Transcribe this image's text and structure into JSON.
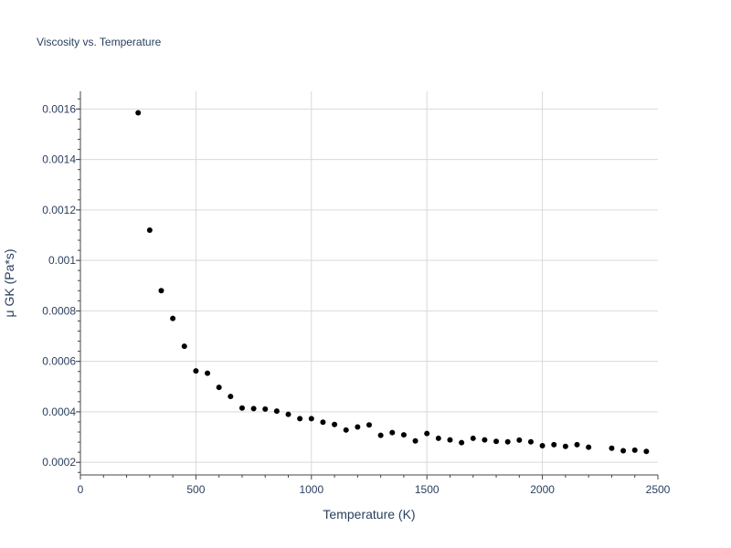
{
  "chart_data": {
    "type": "scatter",
    "title": "Viscosity vs. Temperature",
    "xlabel": "Temperature (K)",
    "ylabel": "μ GK (Pa*s)",
    "xlim": [
      0,
      2500
    ],
    "ylim": [
      0.00015,
      0.00167
    ],
    "x_ticks": [
      0,
      500,
      1000,
      1500,
      2000,
      2500
    ],
    "x_tick_labels": [
      "0",
      "500",
      "1000",
      "1500",
      "2000",
      "2500"
    ],
    "y_ticks": [
      0.0002,
      0.0004,
      0.0006,
      0.0008,
      0.001,
      0.0012,
      0.0014,
      0.0016
    ],
    "y_tick_labels": [
      "0.0002",
      "0.0004",
      "0.0006",
      "0.0008",
      "0.001",
      "0.0012",
      "0.0014",
      "0.0016"
    ],
    "grid": true,
    "marker_color": "#000000",
    "series": [
      {
        "x": [
          250,
          300,
          350,
          400,
          450,
          500,
          550,
          600,
          650,
          700,
          750,
          800,
          850,
          900,
          950,
          1000,
          1050,
          1100,
          1150,
          1200,
          1250,
          1300,
          1350,
          1400,
          1450,
          1500,
          1550,
          1600,
          1650,
          1700,
          1750,
          1800,
          1850,
          1900,
          1950,
          2000,
          2050,
          2100,
          2150,
          2200,
          2300,
          2350,
          2400,
          2450
        ],
        "y": [
          0.001585,
          0.00112,
          0.00088,
          0.00077,
          0.00066,
          0.000562,
          0.000553,
          0.000497,
          0.000461,
          0.000415,
          0.000413,
          0.000411,
          0.000403,
          0.00039,
          0.000373,
          0.000373,
          0.000359,
          0.00035,
          0.000328,
          0.00034,
          0.000348,
          0.000307,
          0.000318,
          0.000309,
          0.000285,
          0.000314,
          0.000295,
          0.000289,
          0.000278,
          0.000295,
          0.000289,
          0.000283,
          0.000281,
          0.000288,
          0.000281,
          0.000266,
          0.00027,
          0.000263,
          0.00027,
          0.00026,
          0.000256,
          0.000246,
          0.000248,
          0.000243
        ]
      }
    ]
  }
}
